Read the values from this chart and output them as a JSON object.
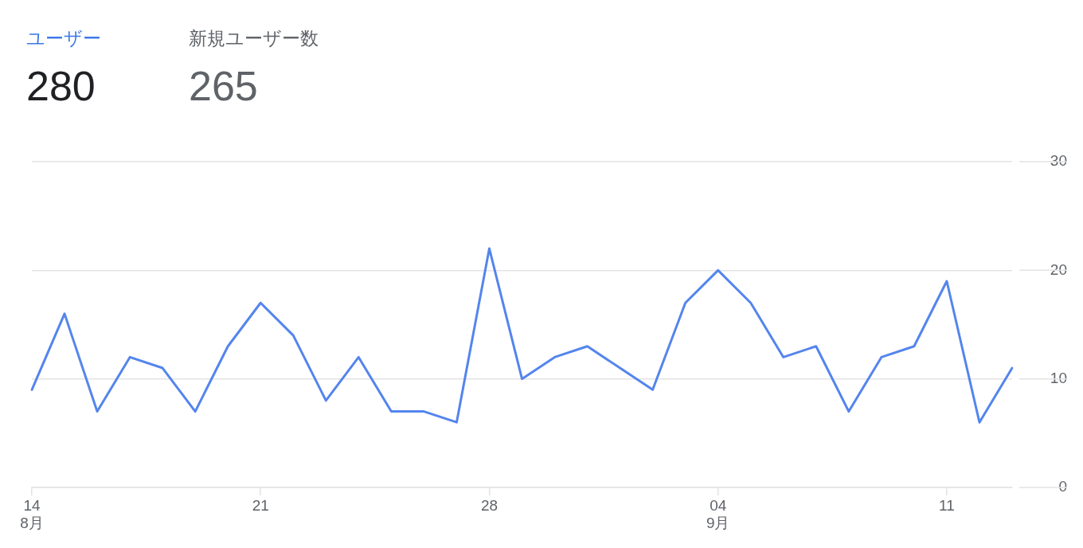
{
  "chart_data": {
    "type": "line",
    "annotations": [
      "ユーザー",
      "280",
      "新規ユーザー数",
      "265"
    ],
    "categories": [
      "14\n8月",
      null,
      null,
      null,
      null,
      null,
      null,
      "21",
      null,
      null,
      null,
      null,
      null,
      null,
      "28",
      null,
      null,
      null,
      null,
      null,
      null,
      "04\n9月",
      null,
      null,
      null,
      null,
      null,
      null,
      "11",
      null,
      null
    ],
    "series": [
      {
        "color": "#5485ed",
        "values": [
          9,
          16,
          7,
          12,
          11,
          7,
          13,
          17,
          14,
          8,
          12,
          7,
          7,
          6,
          22,
          10,
          12,
          13,
          11,
          9,
          17,
          20,
          17,
          12,
          13,
          7,
          12,
          13,
          19,
          6,
          11
        ]
      }
    ],
    "ylim": [
      0,
      30
    ],
    "yticks": [
      0,
      10,
      20,
      30
    ],
    "grid": "y"
  }
}
